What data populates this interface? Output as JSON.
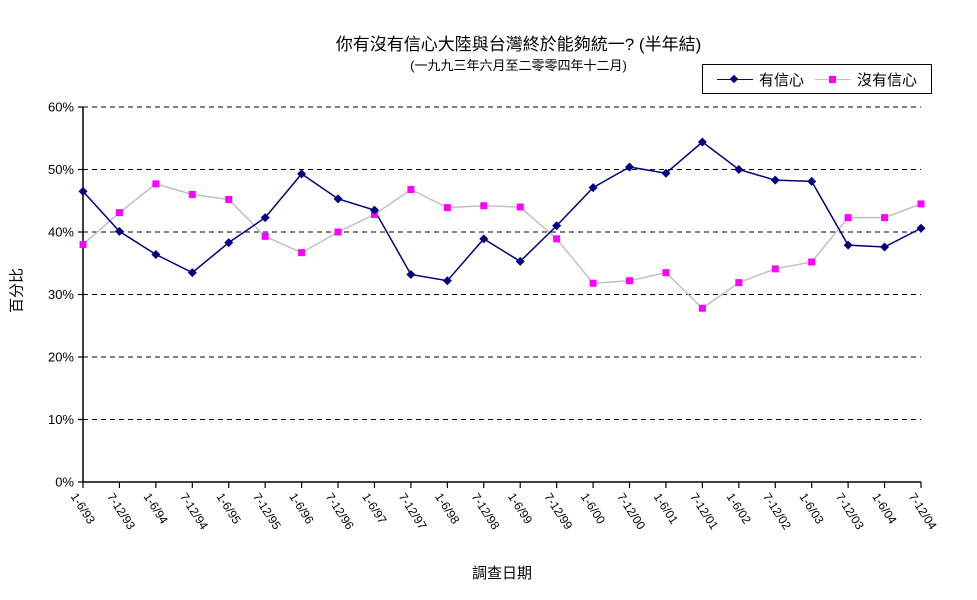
{
  "chart_data": {
    "type": "line",
    "title": "你有沒有信心大陸與台灣終於能夠統一? (半年結)",
    "subtitle": "(一九九三年六月至二零零四年十二月)",
    "xlabel": "調查日期",
    "ylabel": "百分比",
    "ylim": [
      0,
      60
    ],
    "y_ticks": [
      "0%",
      "10%",
      "20%",
      "30%",
      "40%",
      "50%",
      "60%"
    ],
    "grid": "horizontal-dashed",
    "legend_position": "top-right-boxed",
    "categories": [
      "1-6/93",
      "7-12/93",
      "1-6/94",
      "7-12/94",
      "1-6/95",
      "7-12/95",
      "1-6/96",
      "7-12/96",
      "1-6/97",
      "7-12/97",
      "1-6/98",
      "7-12/98",
      "1-6/99",
      "7-12/99",
      "1-6/00",
      "7-12/00",
      "1-6/01",
      "7-12/01",
      "1-6/02",
      "7-12/02",
      "1-6/03",
      "7-12/03",
      "1-6/04",
      "7-12/04"
    ],
    "series": [
      {
        "name": "有信心",
        "marker": "diamond",
        "marker_color": "#000080",
        "line_color": "#000080",
        "values": [
          46.5,
          40.1,
          36.4,
          33.5,
          38.3,
          42.3,
          49.3,
          45.3,
          43.5,
          33.2,
          32.2,
          38.9,
          35.3,
          41.0,
          47.1,
          50.4,
          49.4,
          54.4,
          50.0,
          48.3,
          48.1,
          37.9,
          37.6,
          40.6
        ]
      },
      {
        "name": "沒有信心",
        "marker": "square",
        "marker_color": "#FF00FF",
        "line_color": "#C0C0C0",
        "values": [
          38.0,
          43.1,
          47.7,
          46.0,
          45.2,
          39.3,
          36.7,
          40.0,
          42.8,
          46.8,
          43.9,
          44.2,
          44.0,
          38.9,
          31.8,
          32.2,
          33.5,
          27.8,
          31.9,
          34.1,
          35.2,
          42.3,
          42.3,
          44.5
        ]
      }
    ],
    "colors": {
      "axis": "#000000",
      "gridline": "#000000",
      "background": "#ffffff"
    }
  }
}
